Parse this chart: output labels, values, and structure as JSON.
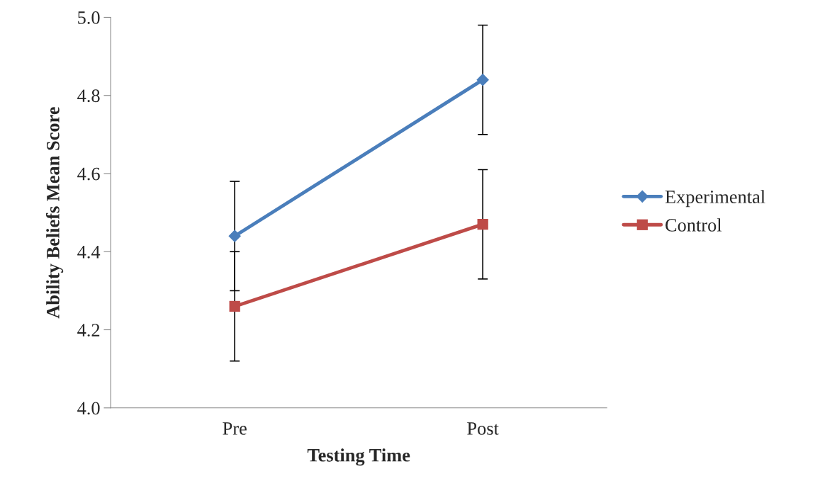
{
  "chart_data": {
    "type": "line",
    "xlabel": "Testing Time",
    "ylabel": "Ability Beliefs Mean Score",
    "categories": [
      "Pre",
      "Post"
    ],
    "series": [
      {
        "name": "Experimental",
        "color": "#4a7ebb",
        "marker": "diamond",
        "values": [
          4.44,
          4.84
        ],
        "errors": [
          0.14,
          0.14
        ]
      },
      {
        "name": "Control",
        "color": "#be4b48",
        "marker": "square",
        "values": [
          4.26,
          4.47
        ],
        "errors": [
          0.14,
          0.14
        ]
      }
    ],
    "ylim": [
      4.0,
      5.0
    ],
    "yticks": [
      {
        "value": 4.0,
        "label": "4.0"
      },
      {
        "value": 4.2,
        "label": "4.2"
      },
      {
        "value": 4.4,
        "label": "4.4"
      },
      {
        "value": 4.6,
        "label": "4.6"
      },
      {
        "value": 4.8,
        "label": "4.8"
      },
      {
        "value": 5.0,
        "label": "5.0"
      }
    ],
    "grid": false,
    "legend": "right"
  }
}
